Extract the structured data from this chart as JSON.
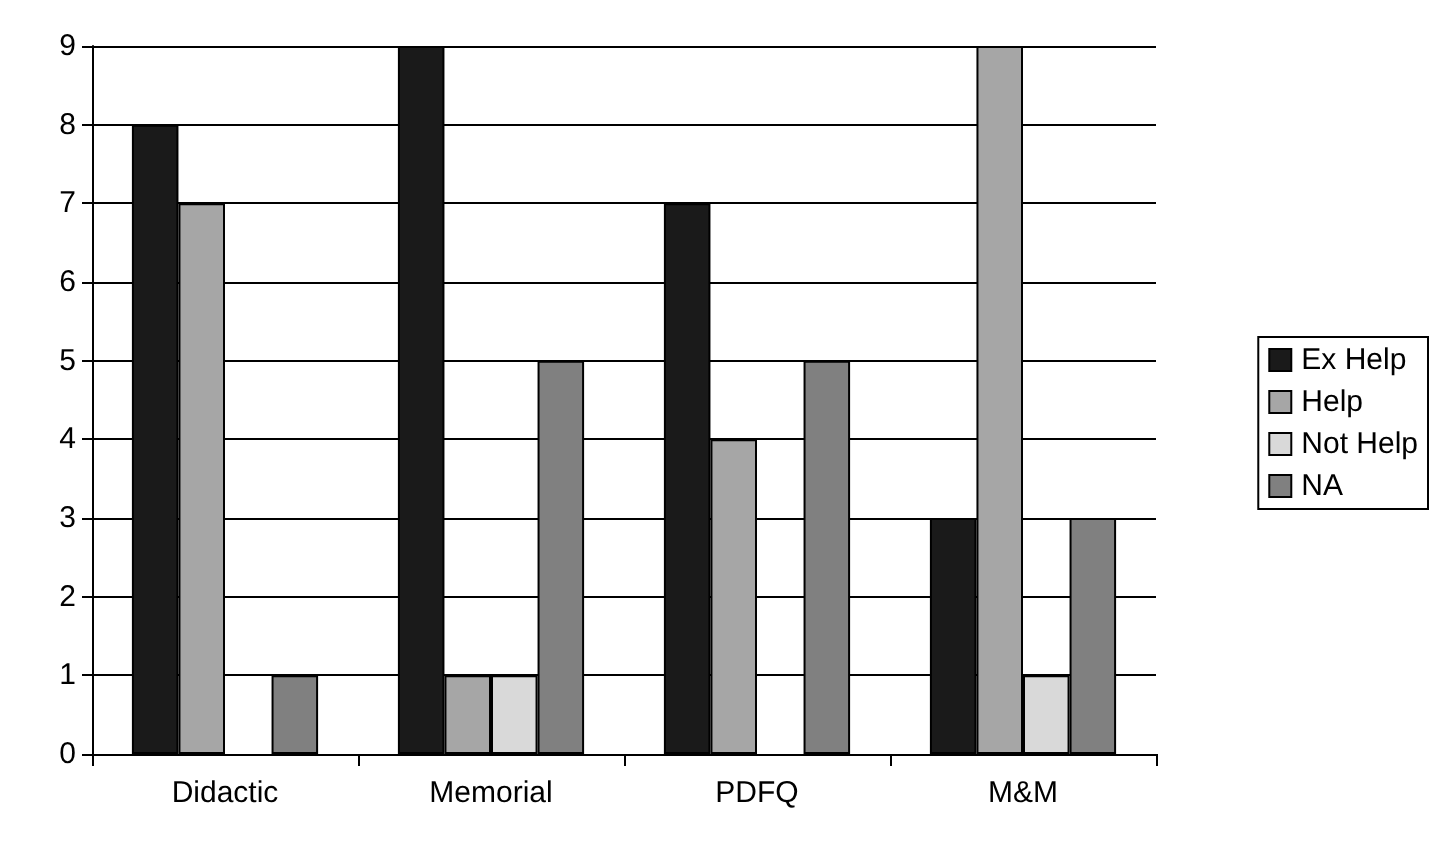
{
  "chart_data": {
    "type": "bar",
    "categories": [
      "Didactic",
      "Memorial",
      "PDFQ",
      "M&M"
    ],
    "series": [
      {
        "name": "Ex Help",
        "color": "#1a1a1a",
        "values": [
          8,
          9,
          7,
          3
        ]
      },
      {
        "name": "Help",
        "color": "#a6a6a6",
        "values": [
          7,
          1,
          4,
          9
        ]
      },
      {
        "name": "Not Help",
        "color": "#d9d9d9",
        "values": [
          0,
          1,
          0,
          1
        ]
      },
      {
        "name": "NA",
        "color": "#808080",
        "values": [
          1,
          5,
          5,
          3
        ]
      }
    ],
    "ylim": [
      0,
      9
    ],
    "yticks": [
      0,
      1,
      2,
      3,
      4,
      5,
      6,
      7,
      8,
      9
    ],
    "grid": "y",
    "legend": "right"
  }
}
